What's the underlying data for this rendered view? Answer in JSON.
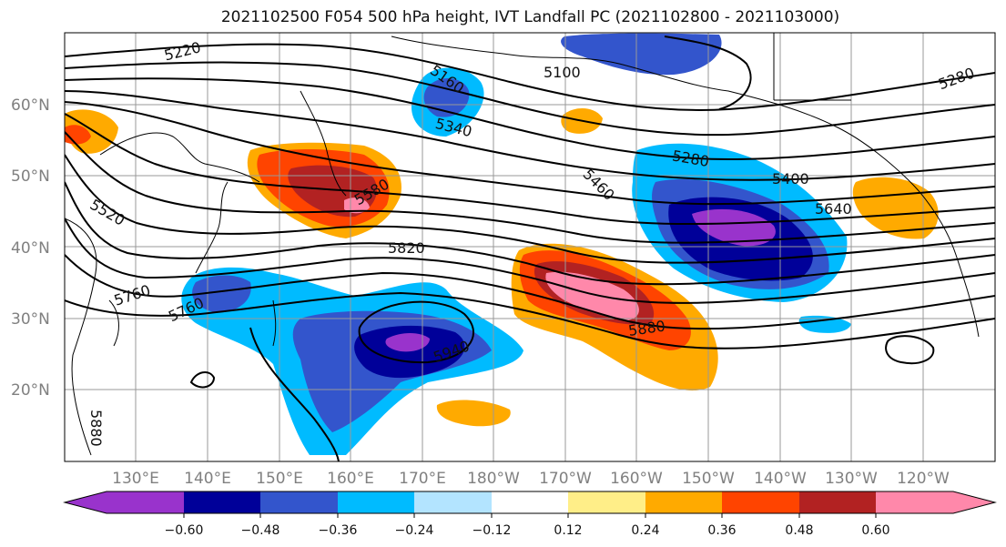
{
  "title": "2021102500 F054 500 hPa height, IVT Landfall PC (2021102800 - 2021103000)",
  "map": {
    "lat_labels": [
      "60°N",
      "50°N",
      "40°N",
      "30°N",
      "20°N"
    ],
    "lon_labels": [
      "130°E",
      "140°E",
      "150°E",
      "160°E",
      "170°E",
      "180°W",
      "170°W",
      "160°W",
      "150°W",
      "140°W",
      "130°W",
      "120°W"
    ],
    "contour_labels": [
      "5220",
      "5160",
      "5100",
      "5280",
      "5340",
      "5460",
      "5400",
      "5640",
      "5580",
      "5520",
      "5820",
      "5760",
      "5760",
      "5880",
      "5940",
      "5280",
      "5880"
    ]
  },
  "colorbar": {
    "tick_labels": [
      "−0.60",
      "−0.48",
      "−0.36",
      "−0.24",
      "−0.12",
      "0.12",
      "0.24",
      "0.36",
      "0.48",
      "0.60"
    ],
    "colors": [
      "#9933cc",
      "#000099",
      "#3355cc",
      "#00bbff",
      "#b3e4ff",
      "#ffffff",
      "#ffee88",
      "#ffaa00",
      "#ff4400",
      "#b22222",
      "#ff88aa"
    ]
  }
}
